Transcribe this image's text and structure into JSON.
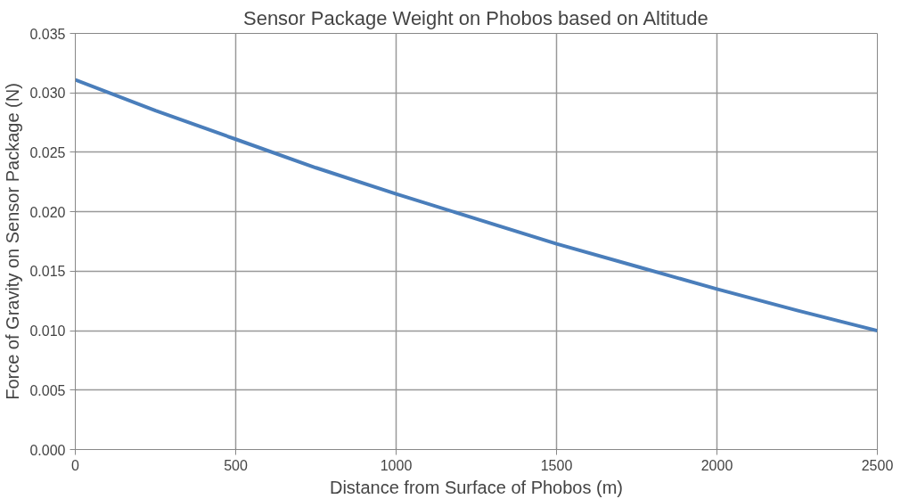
{
  "chart_data": {
    "type": "line",
    "title": "Sensor Package Weight on Phobos based on Altitude",
    "xlabel": "Distance from Surface of Phobos (m)",
    "ylabel": "Force of Gravity on Sensor Package (N)",
    "x": [
      0,
      250,
      500,
      750,
      1000,
      1250,
      1500,
      1750,
      2000,
      2250,
      2500
    ],
    "series": [
      {
        "color": "#4a7ebb",
        "values": [
          0.0311,
          0.0285,
          0.0261,
          0.0237,
          0.0215,
          0.0194,
          0.0173,
          0.0154,
          0.0135,
          0.0117,
          0.01
        ]
      }
    ],
    "xlim": [
      0,
      2500
    ],
    "xticks": [
      0,
      500,
      1000,
      1500,
      2000,
      2500
    ],
    "ylim": [
      0,
      0.035
    ],
    "yticks": [
      {
        "value": 0,
        "label": "0.000"
      },
      {
        "value": 0.005,
        "label": "0.005"
      },
      {
        "value": 0.01,
        "label": "0.010"
      },
      {
        "value": 0.015,
        "label": "0.015"
      },
      {
        "value": 0.02,
        "label": "0.020"
      },
      {
        "value": 0.025,
        "label": "0.025"
      },
      {
        "value": 0.03,
        "label": "0.030"
      },
      {
        "value": 0.035,
        "label": "0.035"
      }
    ],
    "grid": true,
    "marker": "none",
    "line_style": "solid"
  }
}
